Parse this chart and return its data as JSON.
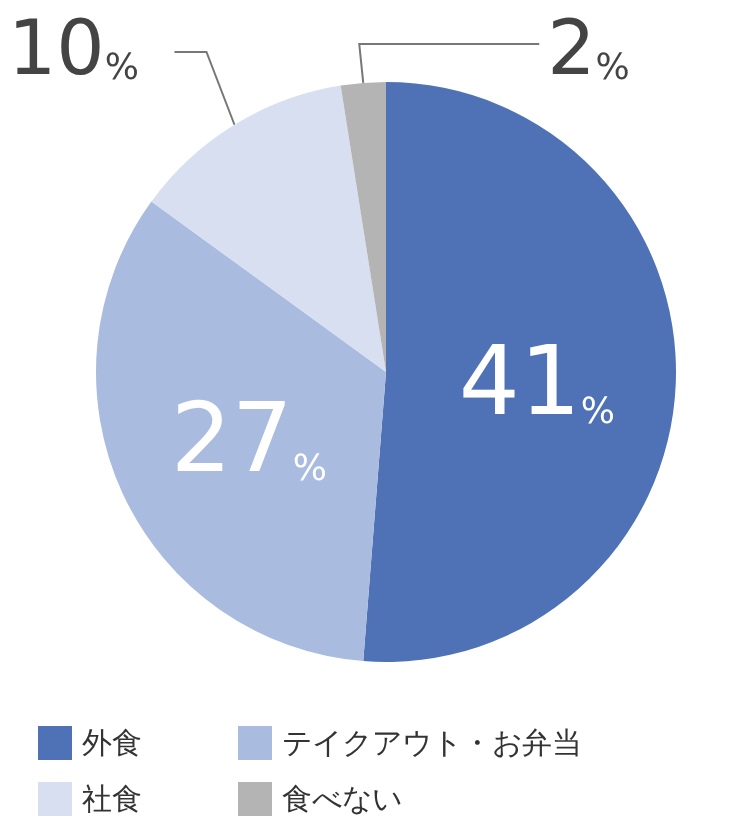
{
  "chart_data": {
    "type": "pie",
    "categories": [
      "外食",
      "テイクアウト・お弁当",
      "社食",
      "食べない"
    ],
    "values": [
      41,
      27,
      10,
      2
    ],
    "colors": [
      "#4f72b6",
      "#a9bbdf",
      "#d8dff0",
      "#b4b4b4"
    ],
    "value_labels": [
      "41%",
      "27%",
      "10%",
      "2%"
    ],
    "legend": "bottom"
  }
}
